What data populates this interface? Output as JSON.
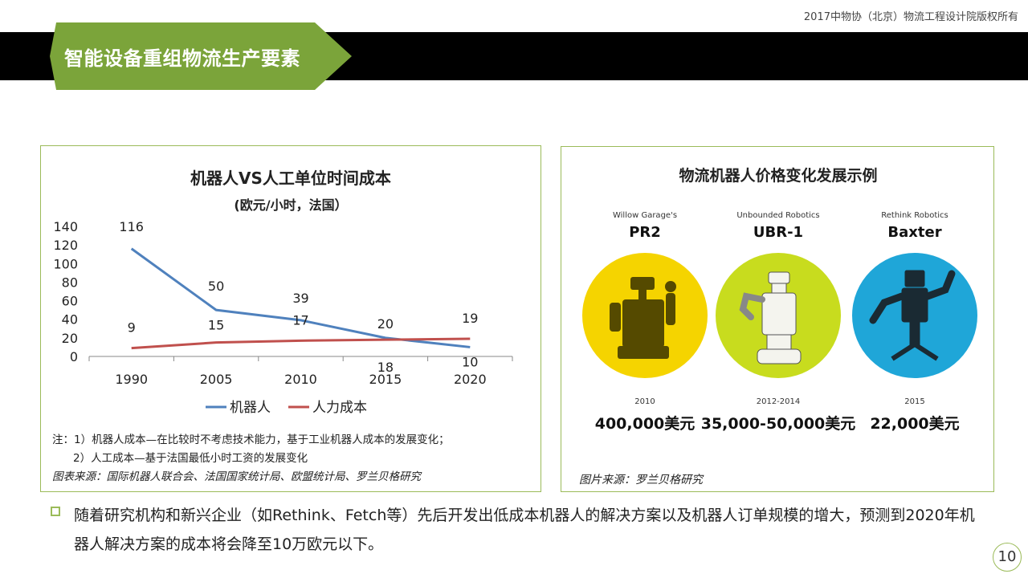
{
  "header": {
    "copyright": "2017中物协（北京）物流工程设计院版权所有",
    "title": "智能设备重组物流生产要素",
    "title_bg_color": "#7ba43a"
  },
  "left_panel": {
    "note_line1": "注：1）机器人成本—在比较时不考虑技术能力，基于工业机器人成本的发展变化；",
    "note_line2": "2）人工成本—基于法国最低小时工资的发展变化",
    "source": "图表来源：国际机器人联合会、法国国家统计局、欧盟统计局、罗兰贝格研究"
  },
  "chart_data": {
    "type": "line",
    "title": "机器人VS人工单位时间成本",
    "subtitle": "(欧元/小时，法国）",
    "categories": [
      "1990",
      "2005",
      "2010",
      "2015",
      "2020"
    ],
    "series": [
      {
        "name": "机器人",
        "values": [
          116,
          50,
          39,
          20,
          10
        ],
        "color": "#4f81bd"
      },
      {
        "name": "人力成本",
        "values": [
          9,
          15,
          17,
          18,
          19
        ],
        "color": "#c0504d"
      }
    ],
    "ylim": [
      0,
      140
    ],
    "yticks": [
      "0",
      "20",
      "40",
      "60",
      "80",
      "100",
      "120",
      "140"
    ],
    "grid": false,
    "legend": "bottom"
  },
  "right_panel": {
    "title": "物流机器人价格变化发展示例",
    "robots": [
      {
        "maker": "Willow Garage's",
        "model": "PR2",
        "year": "2010",
        "price": "400,000美元",
        "color": "#f5d400",
        "icon": "pr2-robot-icon"
      },
      {
        "maker": "Unbounded Robotics",
        "model": "UBR-1",
        "year": "2012-2014",
        "price": "35,000-50,000美元",
        "color": "#c8dc1e",
        "icon": "ubr1-robot-icon"
      },
      {
        "maker": "Rethink Robotics",
        "model": "Baxter",
        "year": "2015",
        "price": "22,000美元",
        "color": "#1fa6d8",
        "icon": "baxter-robot-icon"
      }
    ],
    "source": "图片来源：罗兰贝格研究"
  },
  "bullet": {
    "text": "随着研究机构和新兴企业（如Rethink、Fetch等）先后开发出低成本机器人的解决方案以及机器人订单规模的增大，预测到2020年机器人解决方案的成本将会降至10万欧元以下。"
  },
  "page": {
    "number": "10"
  }
}
